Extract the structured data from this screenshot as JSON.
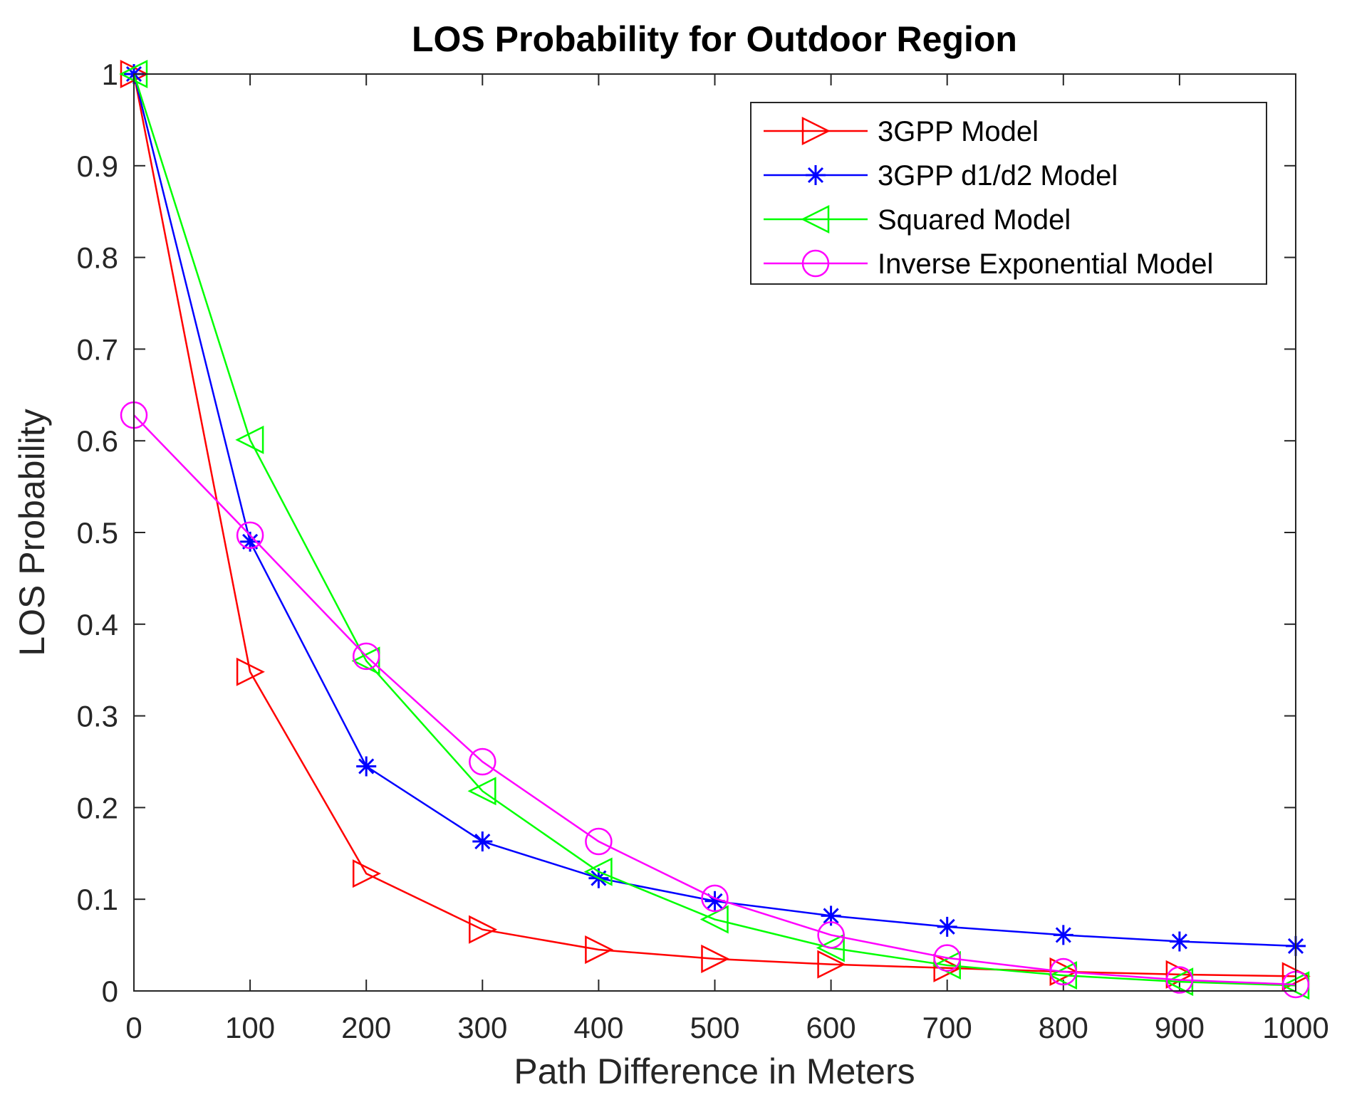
{
  "chart_data": {
    "type": "line",
    "title": "LOS Probability for Outdoor Region",
    "xlabel": "Path Difference in Meters",
    "ylabel": "LOS Probability",
    "xlim": [
      0,
      1000
    ],
    "ylim": [
      0,
      1
    ],
    "x_ticks": [
      "0",
      "100",
      "200",
      "300",
      "400",
      "500",
      "600",
      "700",
      "800",
      "900",
      "1000"
    ],
    "y_ticks": [
      "0",
      "0.1",
      "0.2",
      "0.3",
      "0.4",
      "0.5",
      "0.6",
      "0.7",
      "0.8",
      "0.9",
      "1"
    ],
    "grid": false,
    "legend_position": "top-right",
    "x": [
      0,
      100,
      200,
      300,
      400,
      500,
      600,
      700,
      800,
      900,
      1000
    ],
    "series": [
      {
        "name": "3GPP Model",
        "color": "#ff0000",
        "marker": "triangle-right",
        "values": [
          1.0,
          0.348,
          0.128,
          0.067,
          0.045,
          0.035,
          0.029,
          0.025,
          0.021,
          0.018,
          0.016
        ]
      },
      {
        "name": "3GPP d1/d2 Model",
        "color": "#0000ff",
        "marker": "asterisk",
        "values": [
          1.0,
          0.49,
          0.245,
          0.163,
          0.123,
          0.098,
          0.082,
          0.07,
          0.061,
          0.054,
          0.049
        ]
      },
      {
        "name": "Squared Model",
        "color": "#00ff00",
        "marker": "triangle-left",
        "values": [
          1.0,
          0.601,
          0.36,
          0.218,
          0.13,
          0.078,
          0.047,
          0.028,
          0.017,
          0.01,
          0.006
        ]
      },
      {
        "name": "Inverse Exponential Model",
        "color": "#ff00ff",
        "marker": "circle",
        "values": [
          0.628,
          0.497,
          0.365,
          0.25,
          0.163,
          0.101,
          0.061,
          0.036,
          0.021,
          0.012,
          0.007
        ]
      }
    ]
  }
}
